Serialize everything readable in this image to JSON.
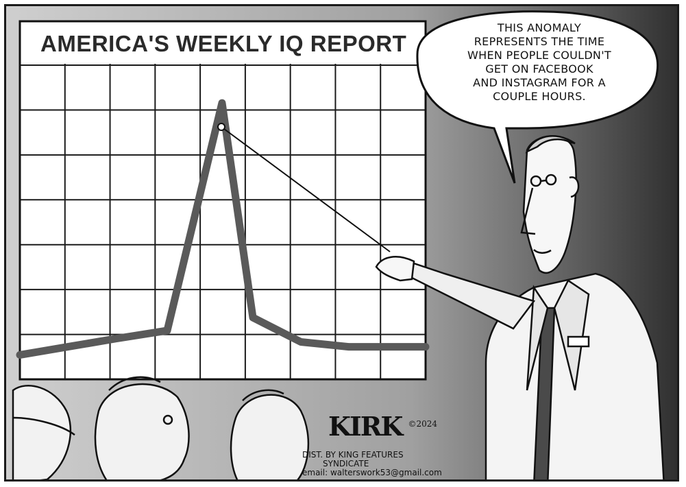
{
  "chart": {
    "title": "AMERICA'S WEEKLY IQ REPORT"
  },
  "chart_data": {
    "type": "line",
    "title": "AMERICA'S WEEKLY IQ REPORT",
    "xlabel": "",
    "ylabel": "",
    "x": [
      0,
      1,
      2,
      3,
      4,
      5,
      6,
      7,
      8,
      9
    ],
    "series": [
      {
        "values": [
          1.5,
          2.0,
          2.5,
          3.0,
          17.0,
          3.8,
          2.3,
          2.0,
          2.0,
          2.0
        ]
      }
    ],
    "xlim": [
      0,
      9
    ],
    "ylim": [
      0,
      20
    ],
    "grid": true
  },
  "speech_bubble": {
    "lines": [
      "This anomaly",
      "represents the time",
      "when people couldn't",
      "get on Facebook",
      "and Instagram for a",
      "couple hours."
    ]
  },
  "signature": {
    "artist": "KIRK",
    "copyright": "©2024",
    "dist_line1": "DIST. BY KING FEATURES",
    "dist_line2": "SYNDICATE",
    "email": "email: walterswork53@gmail.com"
  },
  "colors": {
    "line": "#5a5a5a",
    "grid": "#1a1a1a",
    "ink": "#111111"
  }
}
